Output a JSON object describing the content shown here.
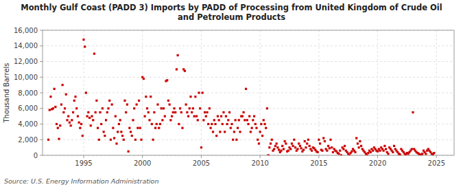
{
  "chart_data": {
    "type": "scatter",
    "title": "Monthly Gulf Coast (PADD 3) Imports by PADD of Processing from United Kingdom of Crude Oil\nand Petroleum Products",
    "y_label": "Thousand Barrels",
    "annotations": [
      "Source: U.S. Energy Information Administration"
    ],
    "color": "#cc0000",
    "marker": "square",
    "grid": true,
    "xlim": [
      1991.5,
      2026.5
    ],
    "ylim": [
      0,
      16000
    ],
    "xticks": [
      1995,
      2000,
      2005,
      2010,
      2015,
      2020,
      2025
    ],
    "yticks": [
      0,
      {
        "value": 2000,
        "label": "2,000"
      },
      {
        "value": 4000,
        "label": "4,000"
      },
      {
        "value": 6000,
        "label": "6,000"
      },
      {
        "value": 8000,
        "label": "8,000"
      },
      {
        "value": 10000,
        "label": "10,000"
      },
      {
        "value": 12000,
        "label": "12,000"
      },
      {
        "value": 14000,
        "label": "14,000"
      },
      {
        "value": 16000,
        "label": "16,000"
      }
    ],
    "x": [
      1992.0,
      1992.1,
      1992.2,
      1992.3,
      1992.4,
      1992.5,
      1992.6,
      1992.7,
      1992.8,
      1992.9,
      1993.0,
      1993.1,
      1993.2,
      1993.3,
      1993.4,
      1993.5,
      1993.6,
      1993.7,
      1993.8,
      1993.9,
      1994.0,
      1994.1,
      1994.2,
      1994.3,
      1994.4,
      1994.5,
      1994.6,
      1994.7,
      1994.8,
      1994.9,
      1995.0,
      1995.1,
      1995.2,
      1995.3,
      1995.4,
      1995.5,
      1995.6,
      1995.7,
      1995.8,
      1995.9,
      1996.0,
      1996.1,
      1996.2,
      1996.3,
      1996.4,
      1996.5,
      1996.6,
      1996.7,
      1996.8,
      1996.9,
      1997.0,
      1997.1,
      1997.2,
      1997.3,
      1997.4,
      1997.5,
      1997.6,
      1997.7,
      1997.8,
      1997.9,
      1998.0,
      1998.1,
      1998.2,
      1998.3,
      1998.4,
      1998.5,
      1998.6,
      1998.7,
      1998.8,
      1998.9,
      1999.0,
      1999.1,
      1999.2,
      1999.3,
      1999.4,
      1999.5,
      1999.6,
      1999.7,
      1999.8,
      1999.9,
      2000.0,
      2000.1,
      2000.2,
      2000.3,
      2000.4,
      2000.5,
      2000.6,
      2000.7,
      2000.8,
      2000.9,
      2001.0,
      2001.1,
      2001.2,
      2001.3,
      2001.4,
      2001.5,
      2001.6,
      2001.7,
      2001.8,
      2001.9,
      2002.0,
      2002.1,
      2002.2,
      2002.3,
      2002.4,
      2002.5,
      2002.6,
      2002.7,
      2002.8,
      2002.9,
      2003.0,
      2003.1,
      2003.2,
      2003.3,
      2003.4,
      2003.5,
      2003.6,
      2003.7,
      2003.8,
      2003.9,
      2004.0,
      2004.1,
      2004.2,
      2004.3,
      2004.4,
      2004.5,
      2004.6,
      2004.7,
      2004.8,
      2004.9,
      2005.0,
      2005.1,
      2005.2,
      2005.3,
      2005.4,
      2005.5,
      2005.6,
      2005.7,
      2005.8,
      2005.9,
      2006.0,
      2006.1,
      2006.2,
      2006.3,
      2006.4,
      2006.5,
      2006.6,
      2006.7,
      2006.8,
      2006.9,
      2007.0,
      2007.1,
      2007.2,
      2007.3,
      2007.4,
      2007.5,
      2007.6,
      2007.7,
      2007.8,
      2007.9,
      2008.0,
      2008.1,
      2008.2,
      2008.3,
      2008.4,
      2008.5,
      2008.6,
      2008.7,
      2008.8,
      2008.9,
      2009.0,
      2009.1,
      2009.2,
      2009.3,
      2009.4,
      2009.5,
      2009.6,
      2009.7,
      2009.8,
      2009.9,
      2010.0,
      2010.1,
      2010.2,
      2010.3,
      2010.4,
      2010.5,
      2010.6,
      2010.7,
      2010.8,
      2010.9,
      2011.0,
      2011.1,
      2011.2,
      2011.3,
      2011.4,
      2011.5,
      2011.6,
      2011.7,
      2011.8,
      2011.9,
      2012.0,
      2012.1,
      2012.2,
      2012.3,
      2012.4,
      2012.5,
      2012.6,
      2012.7,
      2012.8,
      2012.9,
      2013.0,
      2013.1,
      2013.2,
      2013.3,
      2013.4,
      2013.5,
      2013.6,
      2013.7,
      2013.8,
      2013.9,
      2014.0,
      2014.1,
      2014.2,
      2014.3,
      2014.4,
      2014.5,
      2014.6,
      2014.7,
      2014.8,
      2014.9,
      2015.0,
      2015.1,
      2015.2,
      2015.3,
      2015.4,
      2015.5,
      2015.6,
      2015.7,
      2015.8,
      2015.9,
      2016.0,
      2016.1,
      2016.2,
      2016.3,
      2016.4,
      2016.5,
      2016.6,
      2016.7,
      2016.8,
      2016.9,
      2017.0,
      2017.1,
      2017.2,
      2017.3,
      2017.4,
      2017.5,
      2017.6,
      2017.7,
      2017.8,
      2017.9,
      2018.0,
      2018.1,
      2018.2,
      2018.3,
      2018.4,
      2018.5,
      2018.6,
      2018.7,
      2018.8,
      2018.9,
      2019.0,
      2019.1,
      2019.2,
      2019.3,
      2019.4,
      2019.5,
      2019.6,
      2019.7,
      2019.8,
      2019.9,
      2020.0,
      2020.1,
      2020.2,
      2020.3,
      2020.4,
      2020.5,
      2020.6,
      2020.7,
      2020.8,
      2020.9,
      2021.0,
      2021.1,
      2021.2,
      2021.3,
      2021.4,
      2021.5,
      2021.6,
      2021.7,
      2021.8,
      2021.9,
      2022.0,
      2022.1,
      2022.2,
      2022.3,
      2022.4,
      2022.5,
      2022.6,
      2022.7,
      2022.8,
      2022.9,
      2023.0,
      2023.1,
      2023.2,
      2023.3,
      2023.4,
      2023.5,
      2023.6,
      2023.7,
      2023.8,
      2023.9,
      2024.0,
      2024.1,
      2024.2,
      2024.3,
      2024.4,
      2024.5,
      2024.6,
      2024.7,
      2024.8
    ],
    "values": [
      2000,
      5800,
      7500,
      5900,
      6000,
      8500,
      6200,
      4000,
      3500,
      2100,
      3800,
      6500,
      9000,
      5500,
      6000,
      7800,
      4500,
      5000,
      4200,
      3800,
      4500,
      5500,
      7000,
      7500,
      6000,
      5000,
      4200,
      3500,
      4000,
      2500,
      14800,
      13900,
      8000,
      5000,
      5500,
      4800,
      3800,
      5000,
      4500,
      13000,
      5500,
      7000,
      3500,
      2000,
      5500,
      4000,
      6000,
      3000,
      2500,
      4500,
      5500,
      6000,
      7000,
      2000,
      6500,
      3500,
      2200,
      5000,
      1500,
      3000,
      4000,
      4500,
      3000,
      2500,
      2000,
      7000,
      5500,
      6500,
      500,
      3500,
      3000,
      2500,
      4500,
      6000,
      2000,
      6500,
      3500,
      7000,
      3500,
      2000,
      10000,
      9800,
      5000,
      7500,
      6000,
      5500,
      4500,
      7500,
      4000,
      2000,
      5500,
      3500,
      4000,
      6500,
      3500,
      4000,
      6000,
      4500,
      6000,
      5000,
      9500,
      9600,
      7000,
      6500,
      4500,
      5000,
      5500,
      6000,
      5500,
      11000,
      12800,
      4000,
      6000,
      5500,
      3500,
      11000,
      10800,
      6500,
      5500,
      5000,
      6000,
      7500,
      5500,
      6000,
      5000,
      7500,
      5000,
      4500,
      8000,
      6000,
      1000,
      8000,
      4500,
      5500,
      5000,
      5500,
      4000,
      6000,
      3500,
      4000,
      3000,
      4500,
      4000,
      2500,
      5000,
      4500,
      3000,
      5000,
      4000,
      5500,
      3000,
      5000,
      4000,
      4500,
      5500,
      3500,
      4000,
      2000,
      3000,
      4500,
      2000,
      3500,
      4500,
      3000,
      5000,
      5000,
      5500,
      4500,
      8500,
      4500,
      4000,
      5000,
      3000,
      3500,
      4500,
      5000,
      4000,
      3500,
      2000,
      1500,
      3000,
      4000,
      2500,
      4500,
      4000,
      3500,
      6000,
      0,
      1000,
      1500,
      2000,
      600,
      800,
      1200,
      1500,
      1000,
      700,
      400,
      600,
      1200,
      800,
      1800,
      1500,
      500,
      600,
      1000,
      800,
      1500,
      1200,
      2000,
      1000,
      600,
      800,
      1500,
      1200,
      900,
      500,
      700,
      1800,
      1000,
      1500,
      2000,
      1200,
      800,
      600,
      1000,
      900,
      700,
      500,
      400,
      2000,
      1500,
      700,
      600,
      2200,
      1800,
      800,
      600,
      1200,
      900,
      2000,
      1000,
      400,
      800,
      600,
      500,
      300,
      200,
      600,
      0,
      1000,
      800,
      1200,
      600,
      400,
      200,
      0,
      300,
      500,
      800,
      600,
      400,
      2200,
      1500,
      1000,
      1800,
      1200,
      800,
      600,
      400,
      200,
      0,
      300,
      600,
      400,
      800,
      600,
      1000,
      800,
      600,
      500,
      800,
      600,
      1000,
      800,
      600,
      1200,
      800,
      400,
      200,
      1000,
      800,
      600,
      400,
      1200,
      800,
      600,
      400,
      200,
      100,
      800,
      600,
      400,
      200,
      100,
      300,
      200,
      400,
      600,
      800,
      5500,
      800,
      600,
      400,
      300,
      200,
      100,
      50,
      200,
      600,
      400,
      200,
      600,
      800,
      600,
      400,
      200,
      100,
      300
    ]
  }
}
